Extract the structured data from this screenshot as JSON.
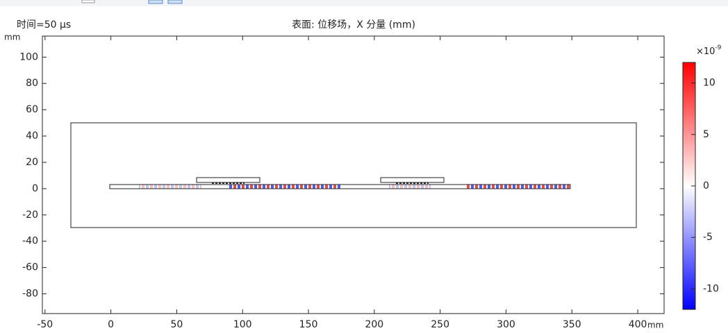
{
  "chart_data": {
    "type": "surface",
    "title": "表面: 位移场，X 分量 (mm)",
    "time_label": "时间=50 µs",
    "x_unit": "mm",
    "y_unit": "mm",
    "xlim": [
      -52,
      420
    ],
    "xticks": [
      -50,
      0,
      50,
      100,
      150,
      200,
      250,
      300,
      350,
      400
    ],
    "ylim": [
      -95,
      116
    ],
    "yticks": [
      -80,
      -60,
      -40,
      -20,
      0,
      20,
      40,
      60,
      80,
      100
    ],
    "colorbar": {
      "base_label": "×10",
      "exponent_label": "-9",
      "clim": [
        -12,
        12
      ],
      "ticks": [
        -10,
        -5,
        0,
        5,
        10
      ],
      "colors": [
        "#0000ff",
        "#ffffff",
        "#ff0000"
      ]
    }
  }
}
